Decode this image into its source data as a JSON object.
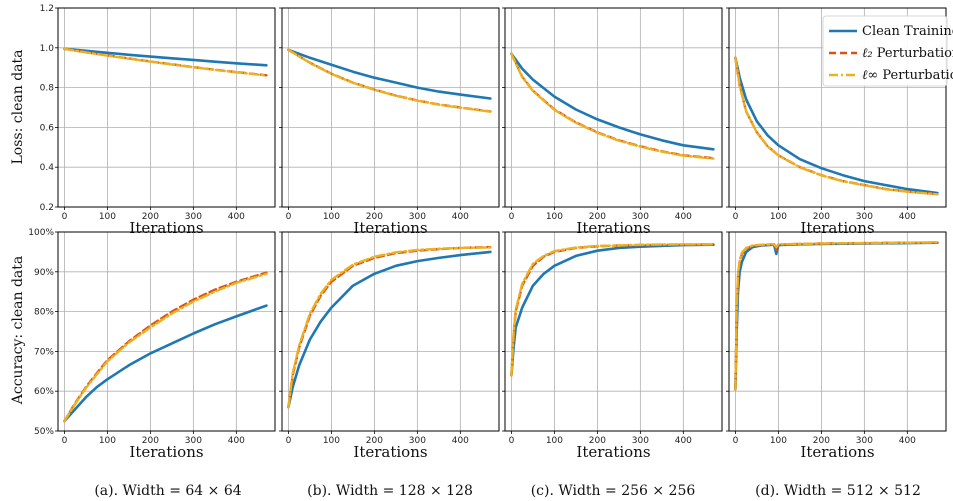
{
  "figure": {
    "legend": [
      {
        "symbol": "",
        "text": "Clean Training",
        "color": "#1f77b4",
        "dash": "solid"
      },
      {
        "symbol": "ℓ₂",
        "text": " Perturbation",
        "color": "#d95319",
        "dash": "dashed"
      },
      {
        "symbol": "ℓ∞",
        "text": " Perturbation",
        "color": "#edb120",
        "dash": "dashdot"
      }
    ],
    "row_ylabels": [
      "Loss: clean data",
      "Accuracy: clean data"
    ],
    "captions": [
      "(a).  Width = 64 × 64",
      "(b).  Width = 128 × 128",
      "(c).  Width = 256 × 256",
      "(d).  Width = 512 × 512"
    ]
  },
  "chart_data": [
    {
      "type": "line",
      "panel": "loss-a",
      "xlabel": "Iterations",
      "ylabel": "Loss: clean data",
      "xlim": [
        -15,
        490
      ],
      "ylim": [
        0.2,
        1.2
      ],
      "xticks": [
        0,
        100,
        200,
        300,
        400
      ],
      "xtick_labels": [
        "0",
        "100",
        "200",
        "300",
        "400"
      ],
      "yticks": [
        0.2,
        0.4,
        0.6,
        0.8,
        1.0,
        1.2
      ],
      "ytick_labels": [
        "0.2",
        "0.4",
        "0.6",
        "0.8",
        "1.0",
        "1.2"
      ],
      "x": [
        0,
        50,
        100,
        150,
        200,
        250,
        300,
        350,
        400,
        470
      ],
      "series": [
        {
          "name": "Clean Training",
          "values": [
            0.995,
            0.985,
            0.975,
            0.965,
            0.956,
            0.947,
            0.939,
            0.93,
            0.922,
            0.912
          ]
        },
        {
          "name": "ℓ2 Perturbation",
          "values": [
            0.995,
            0.978,
            0.962,
            0.946,
            0.931,
            0.917,
            0.903,
            0.89,
            0.878,
            0.862
          ]
        },
        {
          "name": "ℓ∞ Perturbation",
          "values": [
            0.995,
            0.977,
            0.961,
            0.945,
            0.93,
            0.916,
            0.902,
            0.889,
            0.877,
            0.861
          ]
        }
      ]
    },
    {
      "type": "line",
      "panel": "loss-b",
      "xlabel": "Iterations",
      "xlim": [
        -15,
        490
      ],
      "ylim": [
        0.2,
        1.2
      ],
      "xticks": [
        0,
        100,
        200,
        300,
        400
      ],
      "xtick_labels": [
        "0",
        "100",
        "200",
        "300",
        "400"
      ],
      "yticks": [
        0.2,
        0.4,
        0.6,
        0.8,
        1.0,
        1.2
      ],
      "ytick_labels": [],
      "x": [
        0,
        50,
        100,
        150,
        200,
        250,
        300,
        350,
        400,
        470
      ],
      "series": [
        {
          "name": "Clean Training",
          "values": [
            0.99,
            0.95,
            0.915,
            0.88,
            0.85,
            0.825,
            0.8,
            0.78,
            0.765,
            0.745
          ]
        },
        {
          "name": "ℓ2 Perturbation",
          "values": [
            0.99,
            0.925,
            0.87,
            0.825,
            0.79,
            0.76,
            0.735,
            0.715,
            0.7,
            0.68
          ]
        },
        {
          "name": "ℓ∞ Perturbation",
          "values": [
            0.99,
            0.924,
            0.869,
            0.824,
            0.789,
            0.759,
            0.734,
            0.714,
            0.699,
            0.679
          ]
        }
      ]
    },
    {
      "type": "line",
      "panel": "loss-c",
      "xlabel": "Iterations",
      "xlim": [
        -15,
        490
      ],
      "ylim": [
        0.2,
        1.2
      ],
      "xticks": [
        0,
        100,
        200,
        300,
        400
      ],
      "xtick_labels": [
        "0",
        "100",
        "200",
        "300",
        "400"
      ],
      "yticks": [
        0.2,
        0.4,
        0.6,
        0.8,
        1.0,
        1.2
      ],
      "ytick_labels": [],
      "x": [
        0,
        25,
        50,
        100,
        150,
        200,
        250,
        300,
        350,
        400,
        470
      ],
      "series": [
        {
          "name": "Clean Training",
          "values": [
            0.97,
            0.895,
            0.84,
            0.755,
            0.69,
            0.64,
            0.6,
            0.565,
            0.535,
            0.51,
            0.49
          ]
        },
        {
          "name": "ℓ2 Perturbation",
          "values": [
            0.97,
            0.855,
            0.785,
            0.69,
            0.625,
            0.575,
            0.535,
            0.505,
            0.48,
            0.46,
            0.445
          ]
        },
        {
          "name": "ℓ∞ Perturbation",
          "values": [
            0.97,
            0.853,
            0.783,
            0.688,
            0.623,
            0.573,
            0.533,
            0.503,
            0.478,
            0.458,
            0.443
          ]
        }
      ]
    },
    {
      "type": "line",
      "panel": "loss-d",
      "xlabel": "Iterations",
      "xlim": [
        -15,
        490
      ],
      "ylim": [
        0.2,
        1.2
      ],
      "xticks": [
        0,
        100,
        200,
        300,
        400
      ],
      "xtick_labels": [
        "0",
        "100",
        "200",
        "300",
        "400"
      ],
      "yticks": [
        0.2,
        0.4,
        0.6,
        0.8,
        1.0,
        1.2
      ],
      "ytick_labels": [],
      "legend_position": "top-right",
      "x": [
        0,
        10,
        25,
        50,
        75,
        100,
        150,
        200,
        250,
        300,
        350,
        400,
        470
      ],
      "series": [
        {
          "name": "Clean Training",
          "values": [
            0.95,
            0.85,
            0.74,
            0.63,
            0.56,
            0.51,
            0.44,
            0.395,
            0.36,
            0.33,
            0.31,
            0.29,
            0.27
          ]
        },
        {
          "name": "ℓ2 Perturbation",
          "values": [
            0.95,
            0.81,
            0.68,
            0.575,
            0.505,
            0.46,
            0.4,
            0.36,
            0.33,
            0.31,
            0.29,
            0.278,
            0.265
          ]
        },
        {
          "name": "ℓ∞ Perturbation",
          "values": [
            0.95,
            0.81,
            0.68,
            0.574,
            0.504,
            0.459,
            0.399,
            0.359,
            0.329,
            0.309,
            0.289,
            0.277,
            0.264
          ]
        }
      ]
    },
    {
      "type": "line",
      "panel": "acc-a",
      "xlabel": "Iterations",
      "ylabel": "Accuracy: clean data",
      "xlim": [
        -15,
        490
      ],
      "ylim": [
        50,
        100
      ],
      "xticks": [
        0,
        100,
        200,
        300,
        400
      ],
      "xtick_labels": [
        "0",
        "100",
        "200",
        "300",
        "400"
      ],
      "yticks": [
        50,
        60,
        70,
        80,
        90,
        100
      ],
      "ytick_labels": [
        "50%",
        "60%",
        "70%",
        "80%",
        "90%",
        "100%"
      ],
      "x": [
        0,
        25,
        50,
        75,
        100,
        150,
        200,
        250,
        300,
        350,
        400,
        470
      ],
      "series": [
        {
          "name": "Clean Training",
          "values": [
            52.5,
            55.5,
            58.5,
            61.0,
            63.0,
            66.5,
            69.5,
            72.0,
            74.5,
            76.8,
            78.8,
            81.5
          ]
        },
        {
          "name": "ℓ2 Perturbation",
          "values": [
            52.5,
            57.0,
            61.0,
            64.5,
            67.8,
            72.5,
            76.5,
            80.0,
            83.0,
            85.5,
            87.5,
            89.8
          ]
        },
        {
          "name": "ℓ∞ Perturbation",
          "values": [
            52.5,
            56.8,
            60.8,
            64.2,
            67.5,
            72.2,
            76.0,
            79.5,
            82.5,
            85.0,
            87.2,
            89.5
          ]
        }
      ]
    },
    {
      "type": "line",
      "panel": "acc-b",
      "xlabel": "Iterations",
      "xlim": [
        -15,
        490
      ],
      "ylim": [
        50,
        100
      ],
      "xticks": [
        0,
        100,
        200,
        300,
        400
      ],
      "xtick_labels": [
        "0",
        "100",
        "200",
        "300",
        "400"
      ],
      "yticks": [
        50,
        60,
        70,
        80,
        90,
        100
      ],
      "ytick_labels": [],
      "x": [
        0,
        10,
        25,
        50,
        75,
        100,
        150,
        200,
        250,
        300,
        350,
        400,
        470
      ],
      "series": [
        {
          "name": "Clean Training",
          "values": [
            56,
            61,
            66.5,
            73,
            77.5,
            81,
            86.5,
            89.5,
            91.5,
            92.7,
            93.5,
            94.2,
            95
          ]
        },
        {
          "name": "ℓ2 Perturbation",
          "values": [
            56,
            64,
            71,
            79,
            84,
            87.5,
            91.5,
            93.5,
            94.7,
            95.3,
            95.7,
            96,
            96.2
          ]
        },
        {
          "name": "ℓ∞ Perturbation",
          "values": [
            56,
            64.5,
            71.5,
            79.5,
            84.5,
            88,
            91.8,
            93.8,
            94.9,
            95.5,
            95.8,
            96,
            96.1
          ]
        }
      ]
    },
    {
      "type": "line",
      "panel": "acc-c",
      "xlabel": "Iterations",
      "xlim": [
        -15,
        490
      ],
      "ylim": [
        50,
        100
      ],
      "xticks": [
        0,
        100,
        200,
        300,
        400
      ],
      "xtick_labels": [
        "0",
        "100",
        "200",
        "300",
        "400"
      ],
      "yticks": [
        50,
        60,
        70,
        80,
        90,
        100
      ],
      "ytick_labels": [],
      "x": [
        0,
        5,
        10,
        25,
        50,
        75,
        100,
        150,
        200,
        250,
        300,
        400,
        470
      ],
      "series": [
        {
          "name": "Clean Training",
          "values": [
            64,
            71,
            76,
            81,
            86.5,
            89.5,
            91.5,
            94,
            95.3,
            96,
            96.3,
            96.7,
            96.8
          ]
        },
        {
          "name": "ℓ2 Perturbation",
          "values": [
            64,
            74,
            80,
            86.5,
            91.5,
            93.8,
            95,
            96,
            96.4,
            96.6,
            96.7,
            96.8,
            96.9
          ]
        },
        {
          "name": "ℓ∞ Perturbation",
          "values": [
            64,
            74.5,
            80.5,
            87,
            92,
            94,
            95.2,
            96.1,
            96.5,
            96.6,
            96.8,
            96.9,
            96.9
          ]
        }
      ]
    },
    {
      "type": "line",
      "panel": "acc-d",
      "xlabel": "Iterations",
      "xlim": [
        -15,
        490
      ],
      "ylim": [
        50,
        100
      ],
      "xticks": [
        0,
        100,
        200,
        300,
        400
      ],
      "xtick_labels": [
        "0",
        "100",
        "200",
        "300",
        "400"
      ],
      "yticks": [
        50,
        60,
        70,
        80,
        90,
        100
      ],
      "ytick_labels": [],
      "x": [
        0,
        3,
        6,
        10,
        15,
        25,
        40,
        60,
        90,
        95,
        100,
        150,
        200,
        300,
        400,
        470
      ],
      "series": [
        {
          "name": "Clean Training",
          "values": [
            60.5,
            75,
            85,
            90,
            92.5,
            95,
            96.2,
            96.6,
            96.8,
            94.5,
            96.7,
            96.9,
            97,
            97.1,
            97.2,
            97.3
          ]
        },
        {
          "name": "ℓ2 Perturbation",
          "values": [
            60.5,
            80,
            89,
            92.5,
            94.5,
            95.8,
            96.5,
            96.7,
            96.9,
            95.5,
            96.8,
            97,
            97.1,
            97.2,
            97.3,
            97.3
          ]
        },
        {
          "name": "ℓ∞ Perturbation",
          "values": [
            60.5,
            81,
            89.5,
            93,
            94.8,
            96,
            96.6,
            96.8,
            96.9,
            96.2,
            96.9,
            97,
            97.1,
            97.2,
            97.3,
            97.4
          ]
        }
      ]
    }
  ]
}
